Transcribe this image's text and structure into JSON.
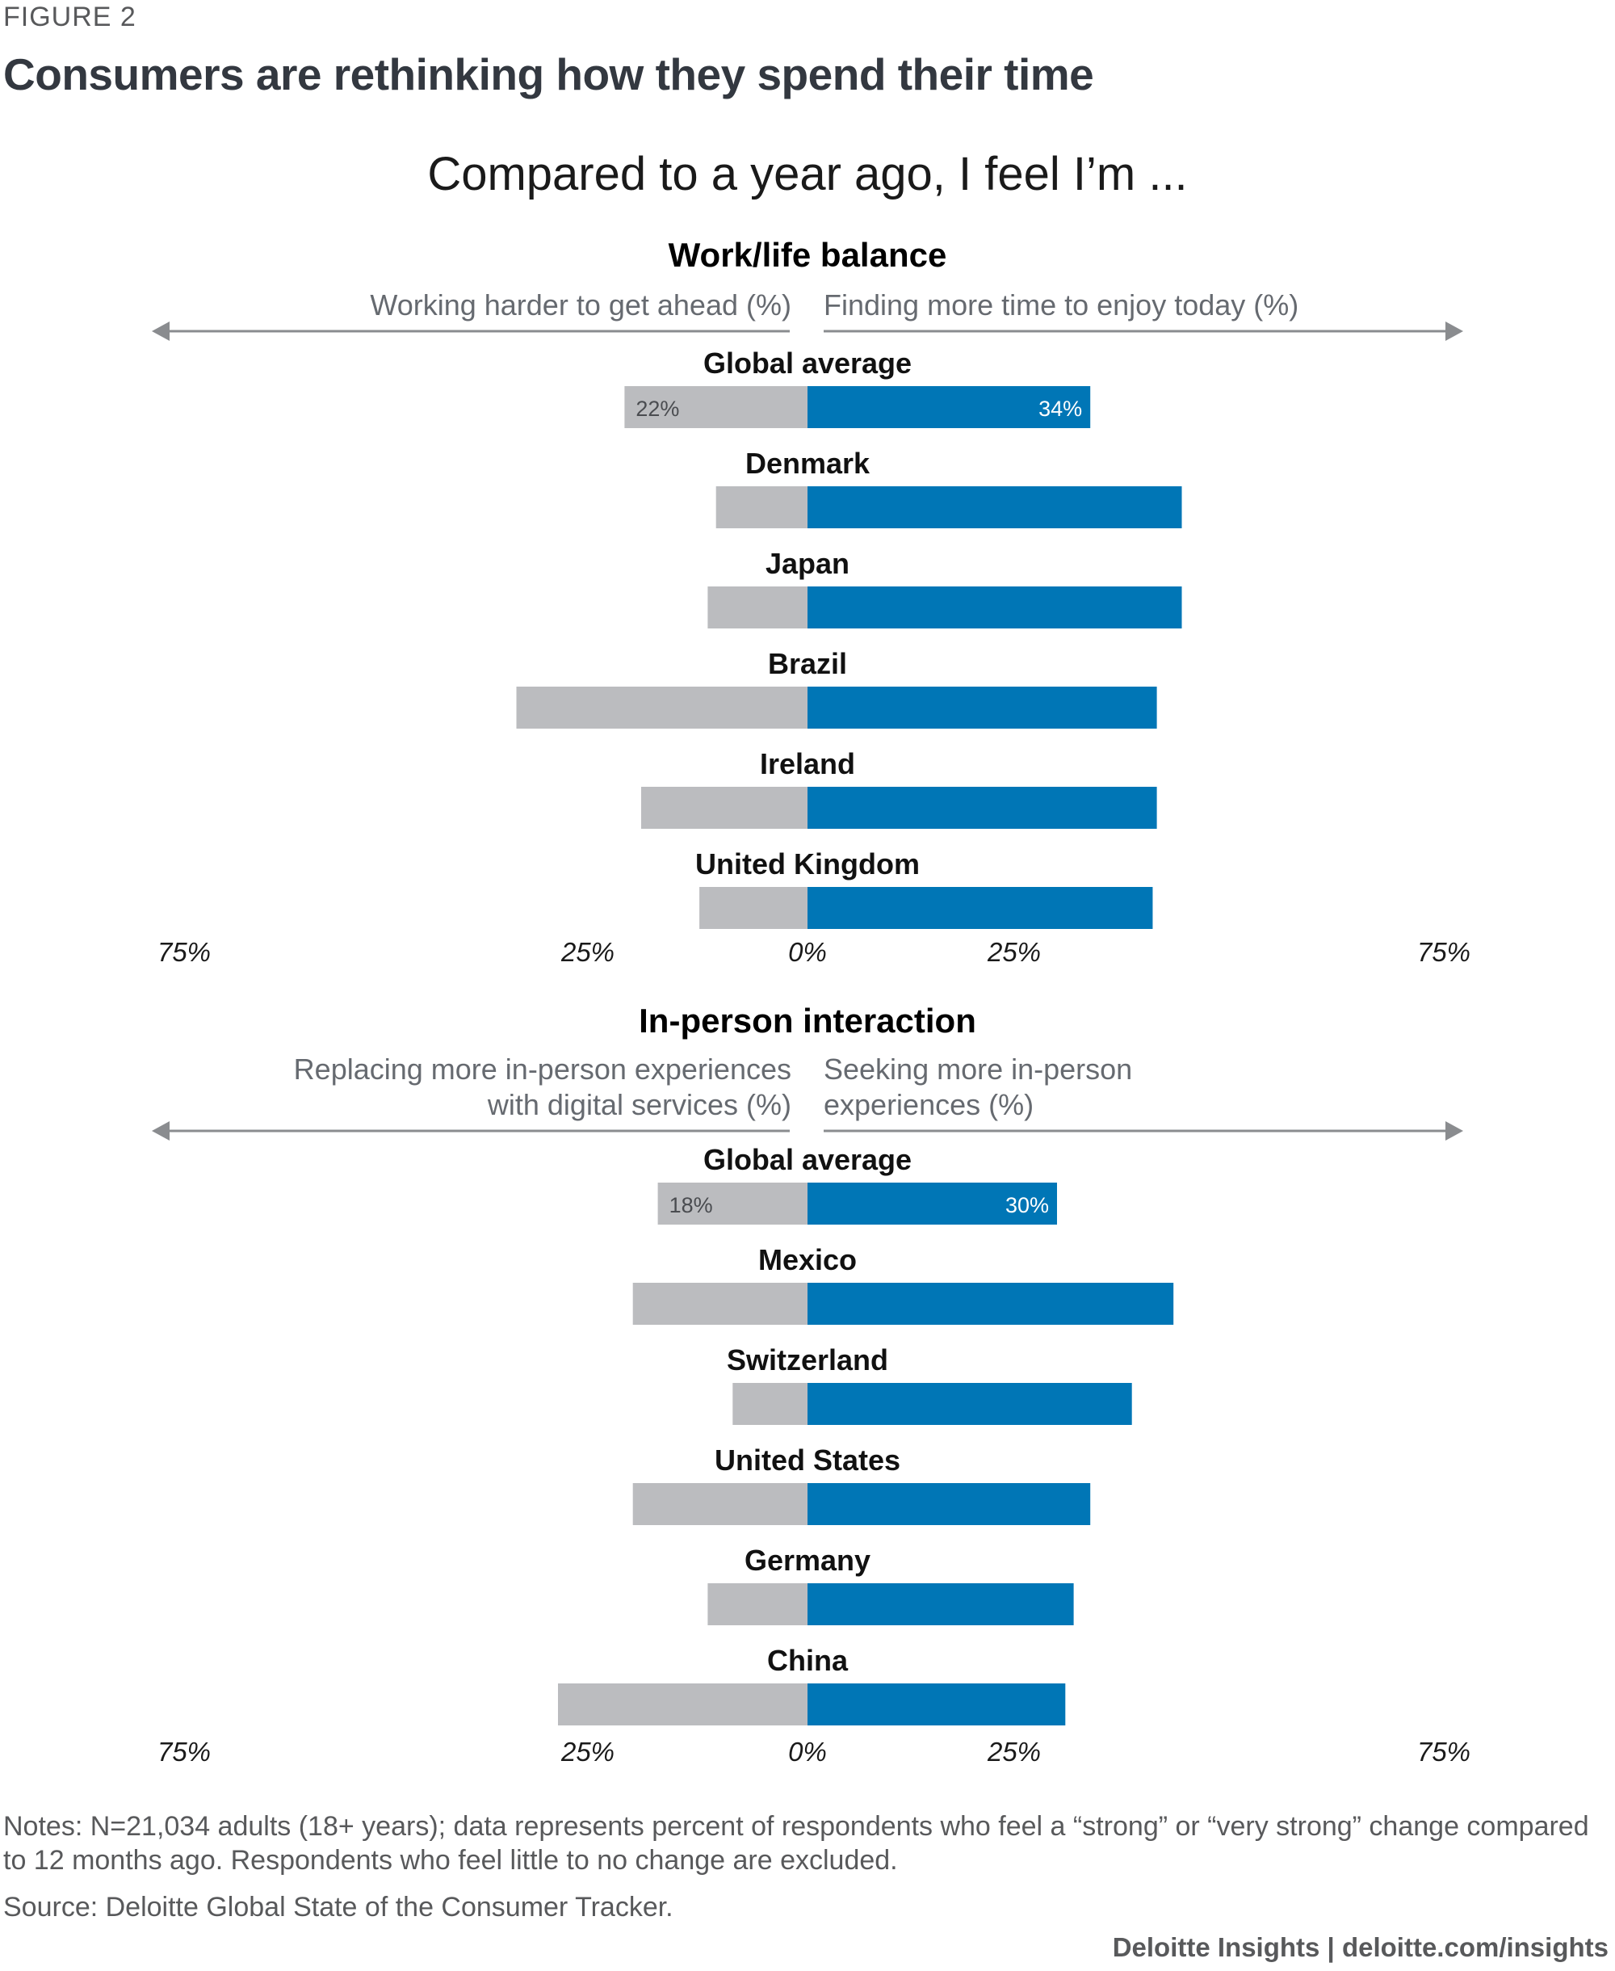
{
  "figure_label": "FIGURE 2",
  "title": "Consumers are rethinking how they spend their time",
  "question": "Compared to a year ago, I feel I’m ...",
  "notes": "Notes: N=21,034 adults (18+ years); data represents percent of respondents who feel a “strong” or “very strong” change compared to 12 months ago. Respondents who feel little to no change are excluded.",
  "source": "Source: Deloitte Global State of the Consumer Tracker.",
  "brand": "Deloitte Insights | deloitte.com/insights",
  "colors": {
    "left_bar": "#bbbcbf",
    "right_bar": "#0076b6",
    "arrow": "#8a8c8f"
  },
  "axis_ticks": [
    "75%",
    "25%",
    "0%",
    "25%",
    "75%"
  ],
  "chart_data": [
    {
      "type": "bar",
      "orientation": "horizontal-diverging",
      "title": "Work/life balance",
      "left_label": "Working harder to get ahead (%)",
      "right_label": "Finding more time to enjoy today (%)",
      "xlim": [
        -75,
        75
      ],
      "categories": [
        "Global average",
        "Denmark",
        "Japan",
        "Brazil",
        "Ireland",
        "United Kingdom"
      ],
      "series": [
        {
          "name": "Working harder to get ahead (%)",
          "values": [
            22,
            11,
            12,
            35,
            20,
            13
          ]
        },
        {
          "name": "Finding more time to enjoy today (%)",
          "values": [
            34,
            45,
            45,
            42,
            42,
            41.5
          ]
        }
      ],
      "data_labels": {
        "left": "22%",
        "right": "34%"
      }
    },
    {
      "type": "bar",
      "orientation": "horizontal-diverging",
      "title": "In-person interaction",
      "left_label": [
        "Replacing more in-person experiences",
        "with digital services (%)"
      ],
      "right_label": [
        "Seeking more in-person",
        "experiences (%)"
      ],
      "xlim": [
        -75,
        75
      ],
      "categories": [
        "Global average",
        "Mexico",
        "Switzerland",
        "United States",
        "Germany",
        "China"
      ],
      "series": [
        {
          "name": "Replacing more in-person experiences with digital services (%)",
          "values": [
            18,
            21,
            9,
            21,
            12,
            30
          ]
        },
        {
          "name": "Seeking more in-person experiences (%)",
          "values": [
            30,
            44,
            39,
            34,
            32,
            31
          ]
        }
      ],
      "data_labels": {
        "left": "18%",
        "right": "30%"
      }
    }
  ]
}
